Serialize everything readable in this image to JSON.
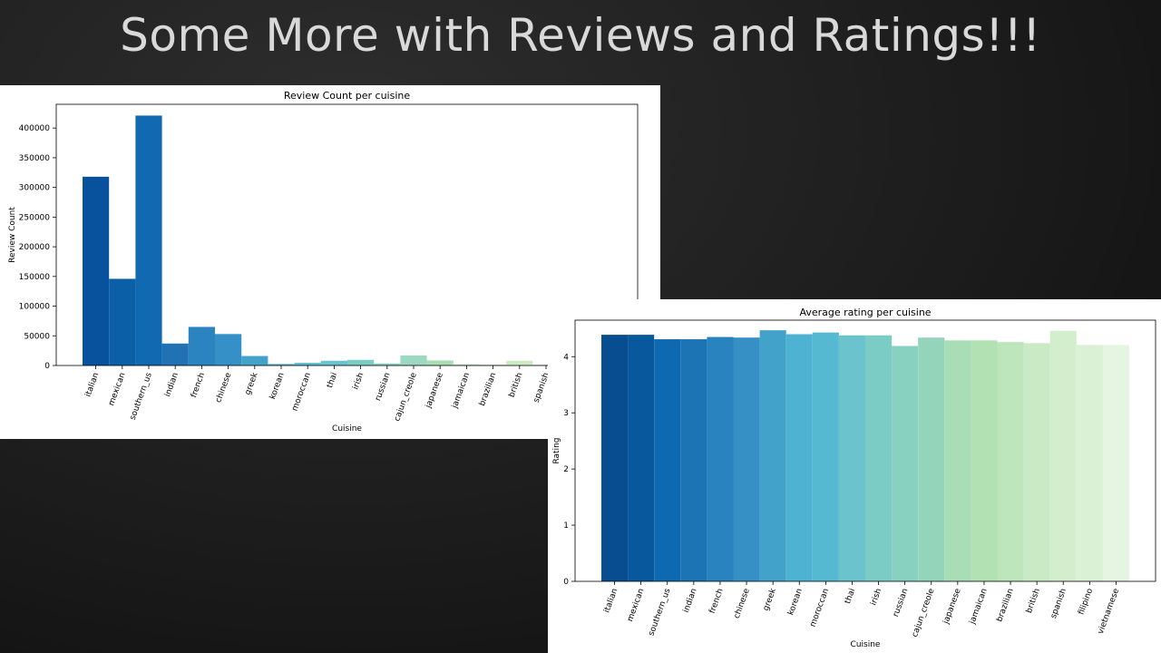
{
  "slide": {
    "title": "Some More with Reviews and Ratings!!!"
  },
  "chart_data": [
    {
      "type": "bar",
      "title": "Review Count per cuisine",
      "xlabel": "Cuisine",
      "ylabel": "Review Count",
      "ylim": [
        0,
        440000
      ],
      "yticks": [
        0,
        50000,
        100000,
        150000,
        200000,
        250000,
        300000,
        350000,
        400000
      ],
      "categories": [
        "italian",
        "mexican",
        "southern_us",
        "indian",
        "french",
        "chinese",
        "greek",
        "korean",
        "moroccan",
        "thai",
        "irish",
        "russian",
        "cajun_creole",
        "japanese",
        "jamaican",
        "brazilian",
        "british",
        "spanish"
      ],
      "values": [
        318000,
        146000,
        421000,
        37000,
        65000,
        53000,
        16000,
        2500,
        4500,
        8000,
        9500,
        3500,
        17000,
        8500,
        2000,
        1500,
        8000,
        1500
      ],
      "colors": [
        "#08519c",
        "#0b5fa6",
        "#1069b1",
        "#2171b5",
        "#2b83bf",
        "#3590c7",
        "#43a2ca",
        "#4eb3d3",
        "#5dbdd2",
        "#6cc3d0",
        "#7bccc4",
        "#8bd2c0",
        "#9dd8c1",
        "#a8ddb5",
        "#b7e3bc",
        "#c6e9c4",
        "#ccebc5",
        "#d8f0d2"
      ],
      "grid": false
    },
    {
      "type": "bar",
      "title": "Average rating per cuisine",
      "xlabel": "Cuisine",
      "ylabel": "Rating",
      "ylim": [
        0,
        4.65
      ],
      "yticks": [
        0,
        1,
        2,
        3,
        4
      ],
      "categories": [
        "italian",
        "mexican",
        "southern_us",
        "indian",
        "french",
        "chinese",
        "greek",
        "korean",
        "moroccan",
        "thai",
        "irish",
        "russian",
        "cajun_creole",
        "japanese",
        "jamaican",
        "brazilian",
        "british",
        "spanish",
        "filipino",
        "vietnamese"
      ],
      "values": [
        4.39,
        4.39,
        4.31,
        4.31,
        4.35,
        4.34,
        4.47,
        4.4,
        4.43,
        4.38,
        4.38,
        4.19,
        4.34,
        4.29,
        4.29,
        4.26,
        4.24,
        4.46,
        4.21,
        4.21
      ],
      "colors": [
        "#084d90",
        "#08589e",
        "#0f69b0",
        "#1c74b4",
        "#2983be",
        "#3690c5",
        "#43a2ca",
        "#4eb3d3",
        "#55b9d1",
        "#6bc3cd",
        "#7bccc4",
        "#88d0c0",
        "#94d4bb",
        "#a8ddb5",
        "#b2e1b4",
        "#bde6bc",
        "#c9eac4",
        "#d3eecd",
        "#dbf1d6",
        "#e6f5e1"
      ],
      "grid": false
    }
  ]
}
